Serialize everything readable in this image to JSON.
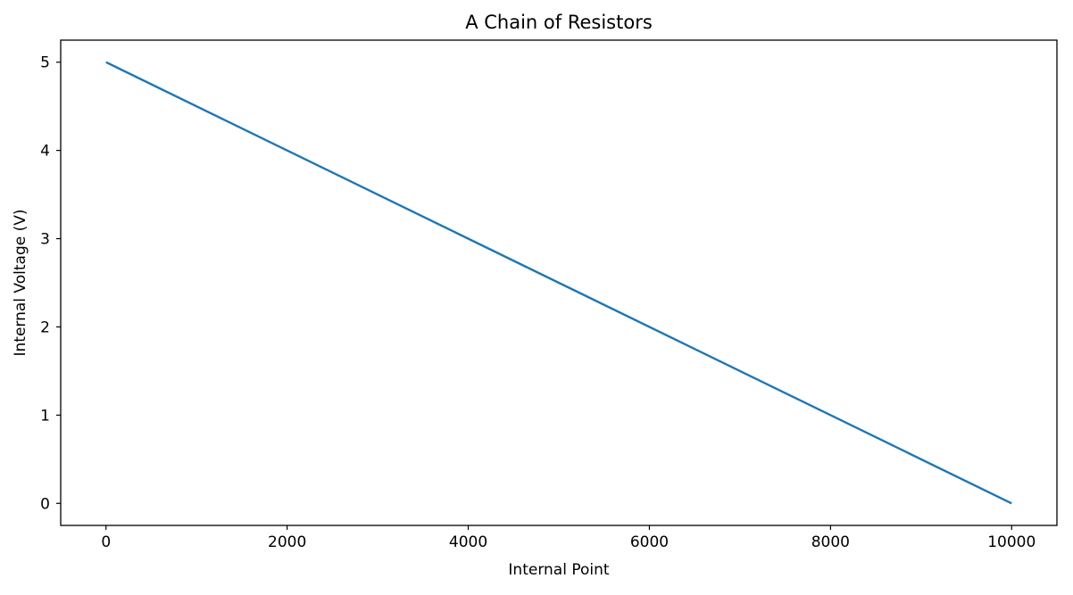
{
  "chart_data": {
    "type": "line",
    "title": "A Chain of Resistors",
    "xlabel": "Internal Point",
    "ylabel": "Internal Voltage (V)",
    "xlim": [
      -500,
      10500
    ],
    "ylim": [
      -0.25,
      5.25
    ],
    "xticks": [
      0,
      2000,
      4000,
      6000,
      8000,
      10000
    ],
    "xtick_labels": [
      "0",
      "2000",
      "4000",
      "6000",
      "8000",
      "10000"
    ],
    "yticks": [
      0,
      1,
      2,
      3,
      4,
      5
    ],
    "ytick_labels": [
      "0",
      "1",
      "2",
      "3",
      "4",
      "5"
    ],
    "grid": false,
    "series": [
      {
        "color": "#1f77b4",
        "x": [
          0,
          10000
        ],
        "y": [
          5,
          0
        ]
      }
    ]
  }
}
